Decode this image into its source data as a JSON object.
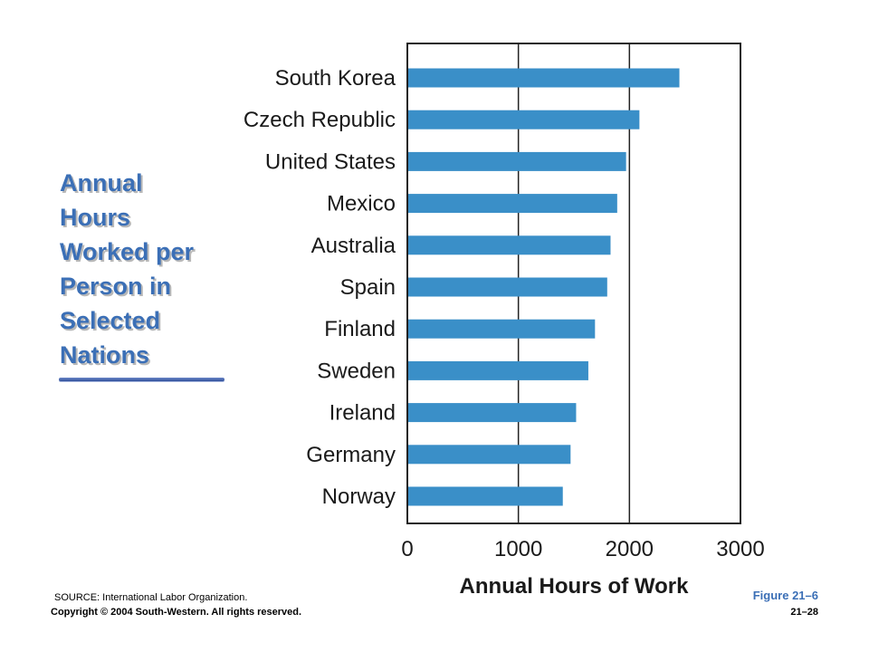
{
  "title_lines": [
    "Annual",
    "Hours",
    "Worked per",
    "Person in",
    "Selected",
    "Nations"
  ],
  "source": "SOURCE: International Labor Organization.",
  "copyright": "Copyright © 2004 South-Western. All rights reserved.",
  "figure_label": "Figure 21–6",
  "page_number": "21–28",
  "colors": {
    "bar": "#3a8fc8",
    "title": "#3b6fb6"
  },
  "chart_data": {
    "type": "bar",
    "orientation": "horizontal",
    "categories": [
      "South Korea",
      "Czech Republic",
      "United States",
      "Mexico",
      "Australia",
      "Spain",
      "Finland",
      "Sweden",
      "Ireland",
      "Germany",
      "Norway"
    ],
    "values": [
      2450,
      2090,
      1970,
      1890,
      1830,
      1800,
      1690,
      1630,
      1520,
      1470,
      1400
    ],
    "xlabel": "Annual Hours of Work",
    "xlim": [
      0,
      3000
    ],
    "xticks": [
      0,
      1000,
      2000,
      3000
    ],
    "xtick_labels": [
      "0",
      "1000",
      "2000",
      "3000"
    ],
    "gridlines": [
      1000,
      2000
    ]
  }
}
